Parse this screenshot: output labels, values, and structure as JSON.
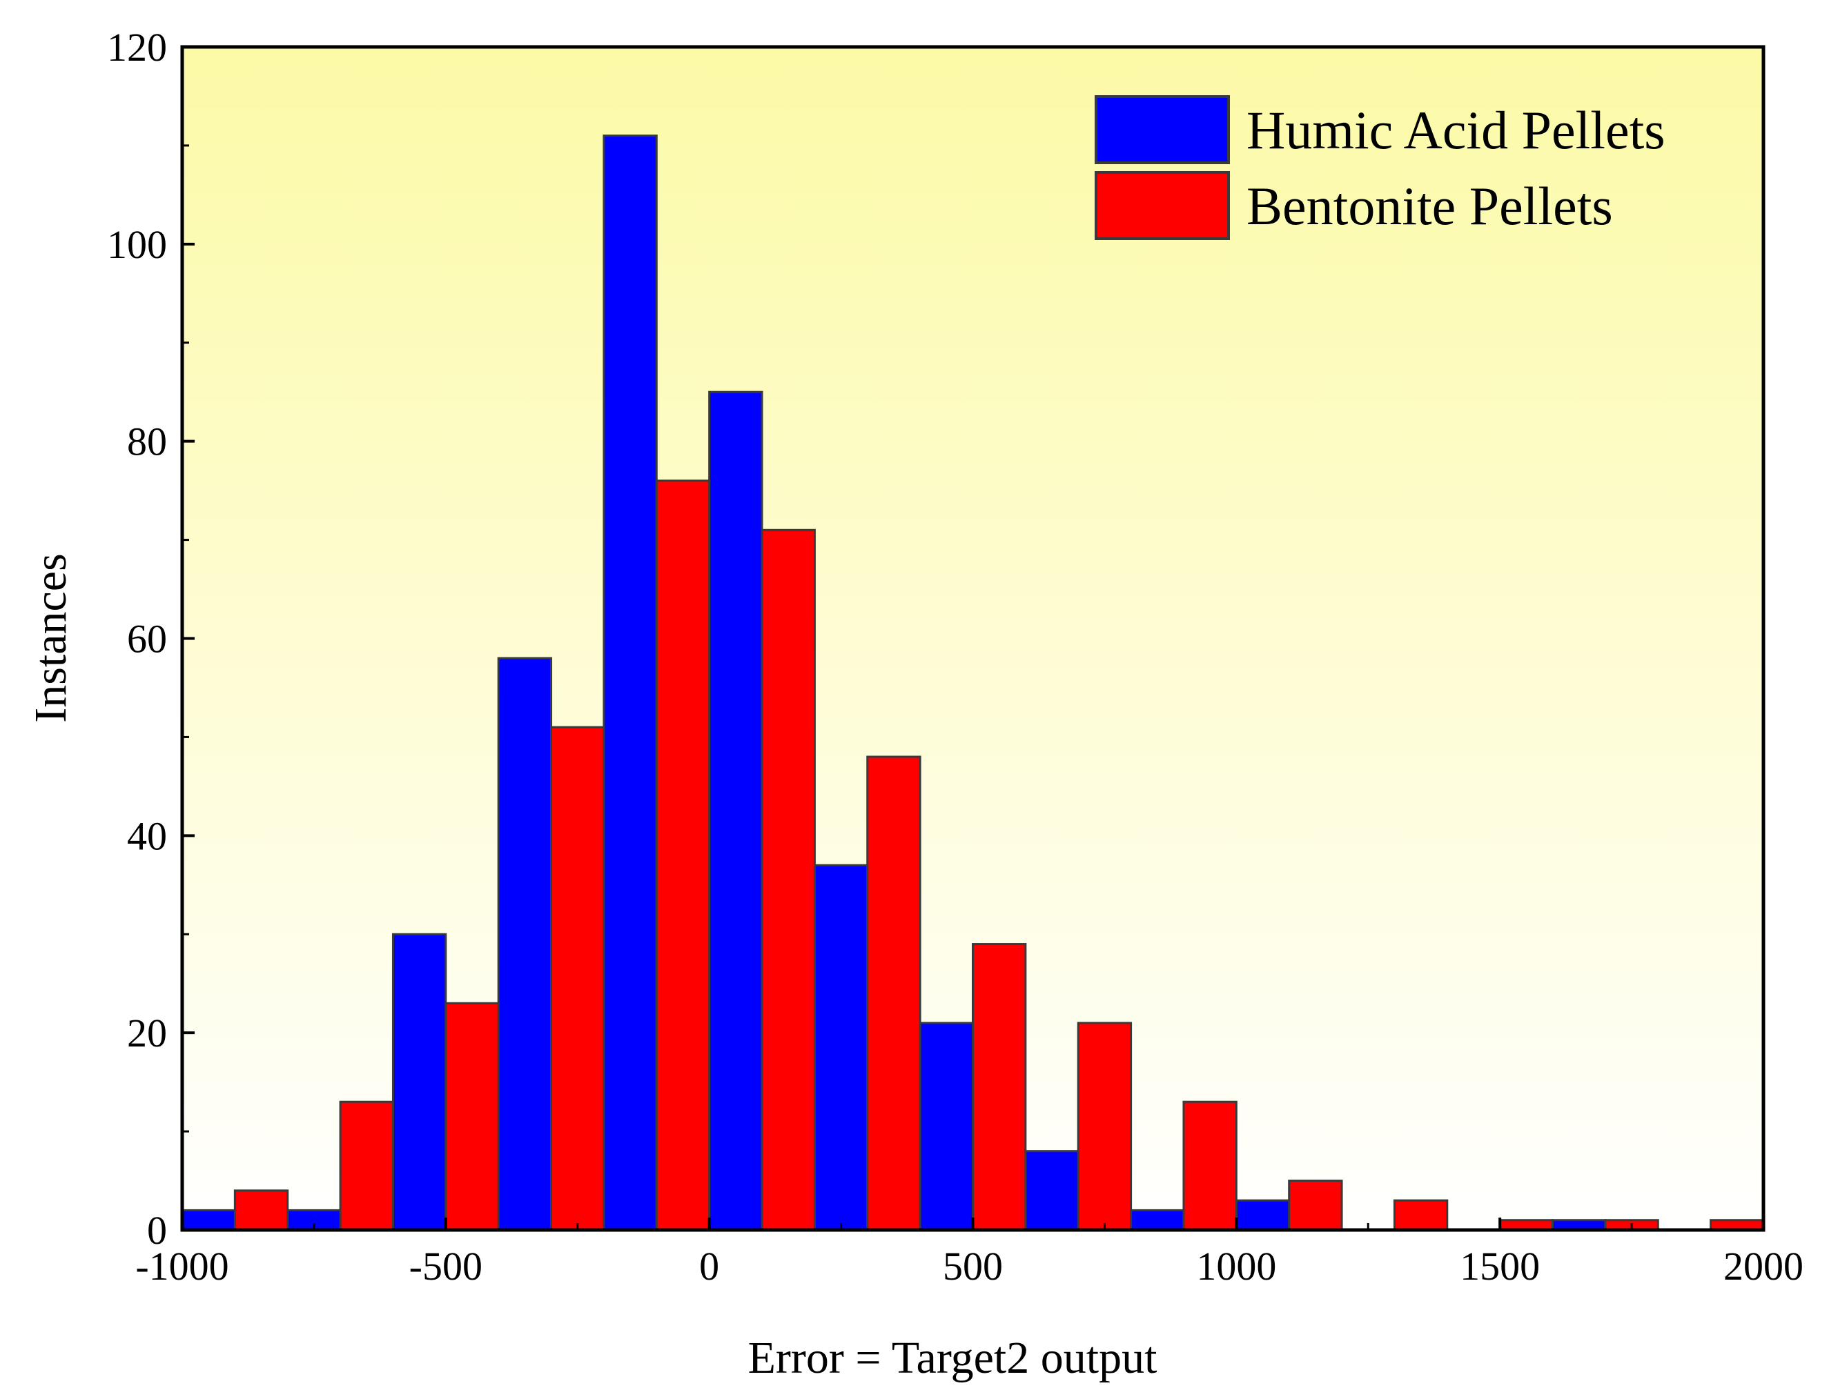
{
  "chart_data": {
    "type": "bar",
    "subtype": "histogram",
    "title": "",
    "xlabel": "Error = Target2  output",
    "ylabel": "Instances",
    "xlim": [
      -1000,
      2000
    ],
    "ylim": [
      0,
      120
    ],
    "x_ticks": [
      -1000,
      -500,
      0,
      500,
      1000,
      1500,
      2000
    ],
    "y_ticks": [
      0,
      20,
      40,
      60,
      80,
      100,
      120
    ],
    "bin_width": 200,
    "bin_starts": [
      -1000,
      -800,
      -600,
      -400,
      -200,
      0,
      200,
      400,
      600,
      800,
      1000,
      1200,
      1400,
      1600,
      1800
    ],
    "grid": false,
    "legend_position": "top-right",
    "background": "yellow-to-white vertical gradient",
    "series": [
      {
        "name": "Humic Acid Pellets",
        "color": "#0000ff",
        "values": [
          2,
          2,
          30,
          58,
          111,
          85,
          37,
          21,
          8,
          2,
          3,
          0,
          0,
          1,
          0
        ]
      },
      {
        "name": "Bentonite Pellets",
        "color": "#ff0000",
        "values": [
          4,
          13,
          23,
          51,
          76,
          71,
          48,
          29,
          21,
          13,
          5,
          3,
          1,
          1,
          1
        ]
      }
    ]
  }
}
